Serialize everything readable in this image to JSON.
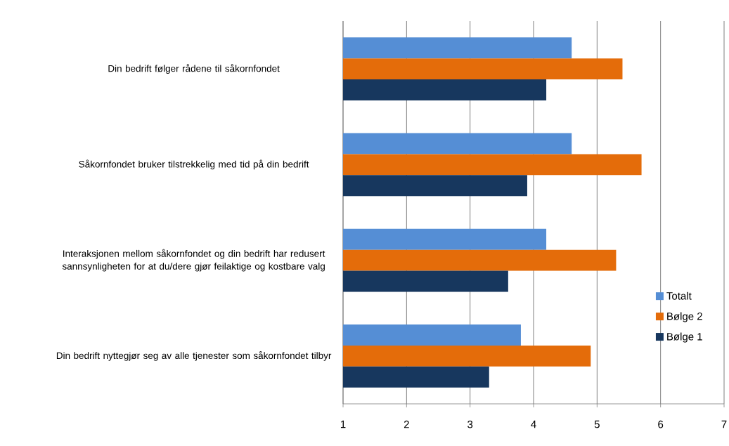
{
  "chart_data": {
    "type": "bar",
    "orientation": "horizontal",
    "categories": [
      "Din bedrift følger rådene til såkornfondet",
      "Såkornfondet bruker tilstrekkelig med tid på din bedrift",
      "Interaksjonen mellom såkornfondet og din bedrift har redusert sannsynligheten for at du/dere gjør feilaktige og kostbare valg",
      "Din bedrift nyttegjør seg av alle tjenester som såkornfondet tilbyr"
    ],
    "series": [
      {
        "name": "Totalt",
        "color": "#558ed5",
        "values": [
          4.6,
          4.6,
          4.2,
          3.8
        ]
      },
      {
        "name": "Bølge 2",
        "color": "#e46c0a",
        "values": [
          5.4,
          5.7,
          5.3,
          4.9
        ]
      },
      {
        "name": "Bølge 1",
        "color": "#17375e",
        "values": [
          4.2,
          3.9,
          3.6,
          3.3
        ]
      }
    ],
    "xlim": [
      1,
      7
    ],
    "xticks": [
      1,
      2,
      3,
      4,
      5,
      6,
      7
    ],
    "grid": "x",
    "legend": "right"
  }
}
